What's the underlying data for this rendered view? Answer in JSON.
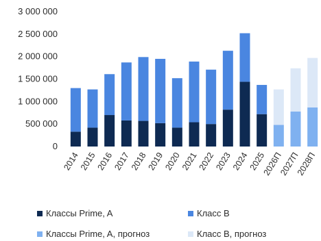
{
  "chart_data": {
    "type": "bar",
    "stacked": true,
    "categories": [
      "2014",
      "2015",
      "2016",
      "2017",
      "2018",
      "2019",
      "2020",
      "2021",
      "2022",
      "2023",
      "2024",
      "2025",
      "2026П",
      "2027П",
      "2028П"
    ],
    "ylim": [
      0,
      3000000
    ],
    "yticks": [
      0,
      500000,
      1000000,
      1500000,
      2000000,
      2500000,
      3000000
    ],
    "ytick_labels": [
      "0",
      "500 000",
      "1 000 000",
      "1 500 000",
      "2 000 000",
      "2 500 000",
      "3 000 000"
    ],
    "series": [
      {
        "name": "Классы Prime, A",
        "color": "#0e2a52",
        "values": [
          330000,
          420000,
          700000,
          580000,
          570000,
          520000,
          420000,
          540000,
          500000,
          820000,
          1440000,
          720000,
          null,
          null,
          null
        ]
      },
      {
        "name": "Класс B",
        "color": "#4a86e0",
        "values": [
          970000,
          850000,
          910000,
          1290000,
          1420000,
          1430000,
          1100000,
          1350000,
          1210000,
          1310000,
          1080000,
          650000,
          null,
          null,
          null
        ]
      },
      {
        "name": "Классы Prime, A, прогноз",
        "color": "#7fb1f0",
        "values": [
          null,
          null,
          null,
          null,
          null,
          null,
          null,
          null,
          null,
          null,
          null,
          null,
          480000,
          780000,
          870000
        ]
      },
      {
        "name": "Класс B, прогноз",
        "color": "#dce8f7",
        "values": [
          null,
          null,
          null,
          null,
          null,
          null,
          null,
          null,
          null,
          null,
          null,
          null,
          790000,
          960000,
          1100000
        ]
      }
    ]
  }
}
